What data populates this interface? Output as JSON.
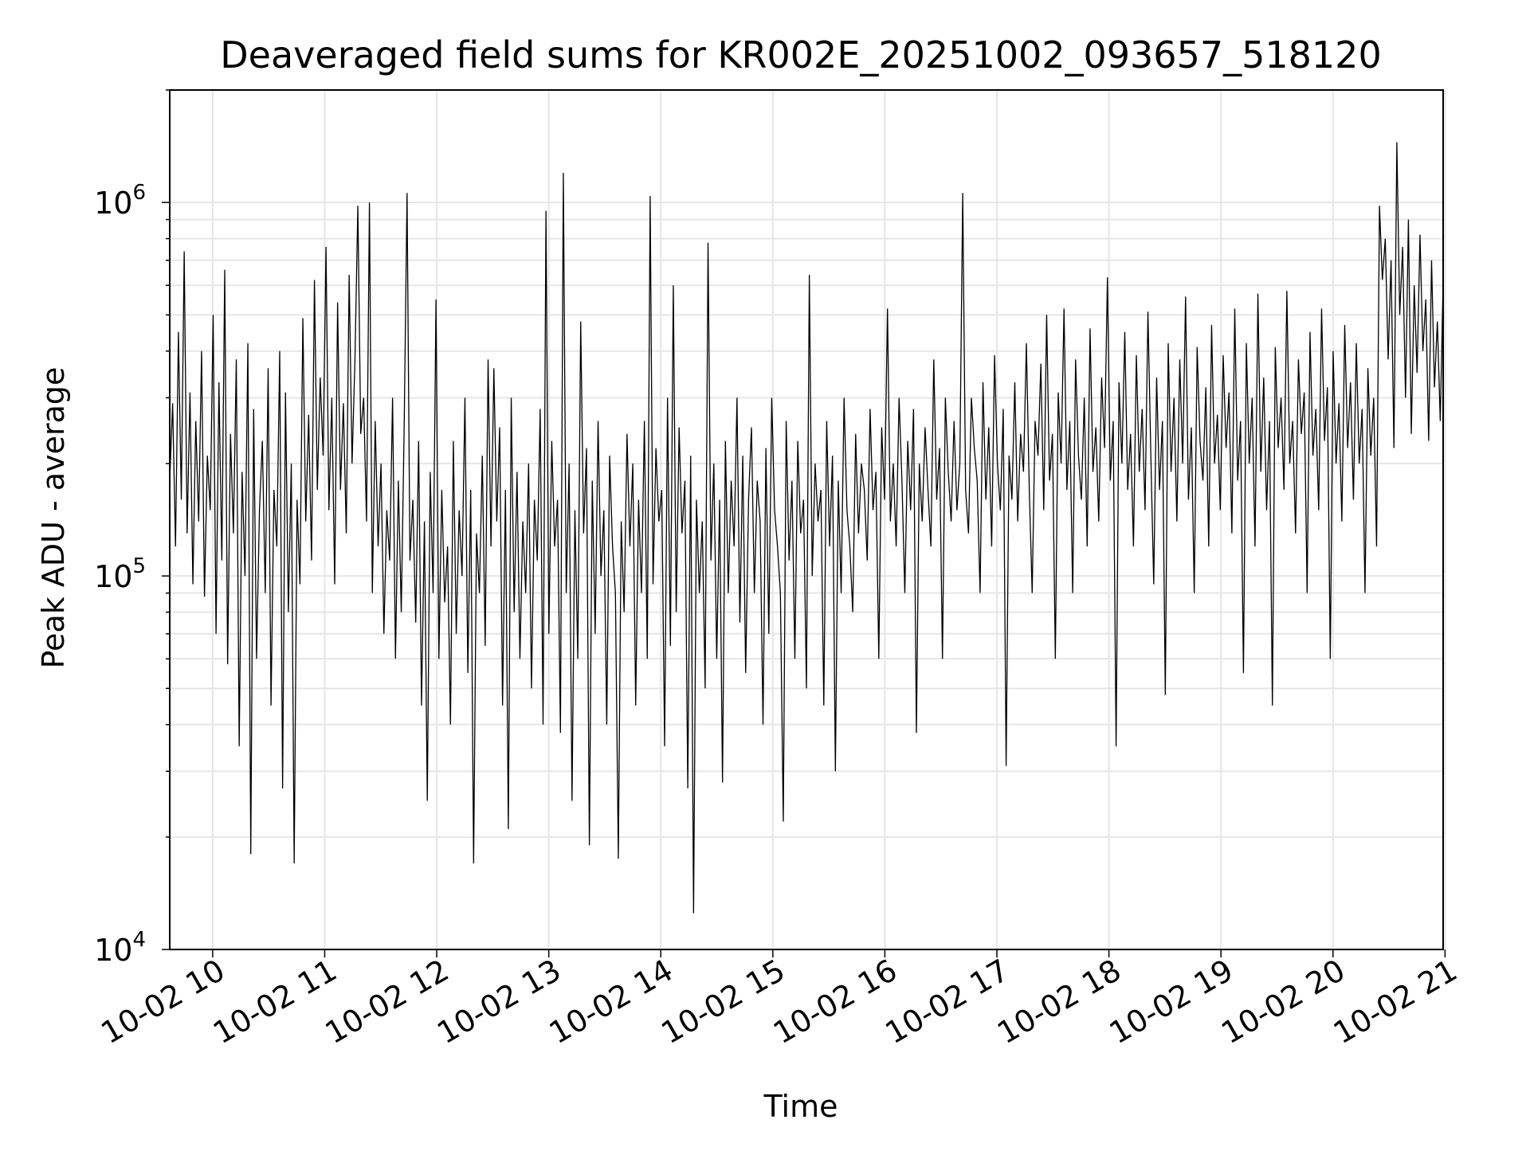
{
  "chart_data": {
    "type": "line",
    "title": "Deaveraged field sums for KR002E_20251002_093657_518120",
    "xlabel": "Time",
    "ylabel": "Peak ADU - average",
    "yscale": "log",
    "ylim": [
      10000,
      2000000
    ],
    "xlim": [
      "10-02 09:37",
      "10-02 20:59"
    ],
    "grid": true,
    "line_color": "#000000",
    "x_ticks": [
      "10-02 10",
      "10-02 11",
      "10-02 12",
      "10-02 13",
      "10-02 14",
      "10-02 15",
      "10-02 16",
      "10-02 17",
      "10-02 18",
      "10-02 19",
      "10-02 20",
      "10-02 21"
    ],
    "y_tick_values": [
      10000,
      100000,
      1000000
    ],
    "y_ticks": [
      {
        "base": "10",
        "exp": "4"
      },
      {
        "base": "10",
        "exp": "5"
      },
      {
        "base": "10",
        "exp": "6"
      }
    ],
    "series": [
      {
        "x_start": "10-02 09:37",
        "x_end": "10-02 20:59",
        "description_of_shape": "dense noisy trace",
        "values": [
          180000,
          290000,
          120000,
          450000,
          160000,
          740000,
          130000,
          310000,
          95000,
          260000,
          140000,
          400000,
          88000,
          210000,
          150000,
          500000,
          70000,
          330000,
          110000,
          660000,
          58000,
          240000,
          130000,
          380000,
          35000,
          190000,
          100000,
          420000,
          18000,
          280000,
          60000,
          150000,
          230000,
          90000,
          360000,
          45000,
          170000,
          120000,
          400000,
          27000,
          310000,
          80000,
          200000,
          17000,
          160000,
          95000,
          490000,
          140000,
          270000,
          110000,
          620000,
          170000,
          340000,
          210000,
          760000,
          150000,
          300000,
          95000,
          540000,
          170000,
          290000,
          130000,
          640000,
          200000,
          380000,
          980000,
          240000,
          300000,
          140000,
          1000000,
          90000,
          260000,
          120000,
          200000,
          70000,
          150000,
          110000,
          300000,
          60000,
          180000,
          80000,
          250000,
          1060000,
          110000,
          160000,
          75000,
          230000,
          45000,
          140000,
          25000,
          190000,
          90000,
          550000,
          60000,
          170000,
          85000,
          120000,
          40000,
          230000,
          70000,
          150000,
          100000,
          300000,
          55000,
          170000,
          17000,
          130000,
          90000,
          210000,
          65000,
          380000,
          120000,
          360000,
          140000,
          250000,
          45000,
          170000,
          21000,
          300000,
          80000,
          190000,
          60000,
          140000,
          90000,
          200000,
          50000,
          160000,
          110000,
          280000,
          40000,
          950000,
          70000,
          230000,
          120000,
          160000,
          38000,
          1200000,
          90000,
          200000,
          25000,
          150000,
          60000,
          480000,
          130000,
          220000,
          19000,
          180000,
          70000,
          260000,
          100000,
          150000,
          40000,
          210000,
          120000,
          90000,
          17500,
          140000,
          80000,
          240000,
          120000,
          200000,
          45000,
          160000,
          90000,
          260000,
          60000,
          1040000,
          95000,
          220000,
          140000,
          170000,
          35000,
          300000,
          65000,
          600000,
          80000,
          250000,
          130000,
          180000,
          27000,
          210000,
          12500,
          160000,
          90000,
          140000,
          50000,
          780000,
          110000,
          200000,
          60000,
          160000,
          28000,
          230000,
          90000,
          180000,
          120000,
          300000,
          75000,
          210000,
          55000,
          160000,
          250000,
          90000,
          180000,
          140000,
          40000,
          220000,
          70000,
          300000,
          150000,
          120000,
          90000,
          22000,
          260000,
          110000,
          180000,
          60000,
          230000,
          130000,
          160000,
          50000,
          640000,
          100000,
          200000,
          140000,
          170000,
          45000,
          260000,
          120000,
          210000,
          30000,
          180000,
          90000,
          300000,
          150000,
          120000,
          80000,
          240000,
          130000,
          200000,
          170000,
          110000,
          280000,
          150000,
          190000,
          60000,
          250000,
          160000,
          520000,
          140000,
          200000,
          120000,
          300000,
          180000,
          90000,
          230000,
          150000,
          280000,
          38000,
          200000,
          140000,
          250000,
          170000,
          120000,
          380000,
          160000,
          220000,
          60000,
          300000,
          190000,
          140000,
          260000,
          150000,
          200000,
          1060000,
          170000,
          130000,
          300000,
          220000,
          180000,
          90000,
          330000,
          160000,
          250000,
          120000,
          390000,
          200000,
          150000,
          280000,
          31000,
          210000,
          160000,
          330000,
          140000,
          240000,
          190000,
          420000,
          170000,
          90000,
          260000,
          210000,
          370000,
          150000,
          500000,
          180000,
          240000,
          60000,
          310000,
          200000,
          520000,
          170000,
          260000,
          90000,
          380000,
          210000,
          160000,
          300000,
          120000,
          460000,
          190000,
          250000,
          140000,
          340000,
          220000,
          630000,
          180000,
          260000,
          35000,
          330000,
          200000,
          450000,
          170000,
          240000,
          120000,
          390000,
          190000,
          280000,
          150000,
          510000,
          210000,
          95000,
          340000,
          170000,
          260000,
          48000,
          420000,
          190000,
          300000,
          140000,
          380000,
          200000,
          560000,
          160000,
          250000,
          90000,
          410000,
          230000,
          180000,
          320000,
          120000,
          470000,
          200000,
          270000,
          150000,
          390000,
          220000,
          310000,
          130000,
          520000,
          180000,
          260000,
          55000,
          420000,
          200000,
          300000,
          120000,
          570000,
          190000,
          340000,
          150000,
          260000,
          45000,
          410000,
          220000,
          300000,
          170000,
          580000,
          200000,
          260000,
          130000,
          380000,
          240000,
          310000,
          90000,
          450000,
          210000,
          280000,
          150000,
          520000,
          230000,
          320000,
          60000,
          400000,
          200000,
          290000,
          140000,
          470000,
          220000,
          330000,
          160000,
          420000,
          200000,
          280000,
          90000,
          360000,
          210000,
          300000,
          120000,
          980000,
          620000,
          800000,
          380000,
          700000,
          220000,
          1450000,
          500000,
          760000,
          300000,
          900000,
          240000,
          600000,
          350000,
          820000,
          400000,
          550000,
          230000,
          700000,
          320000,
          480000,
          260000,
          620000
        ]
      }
    ]
  }
}
